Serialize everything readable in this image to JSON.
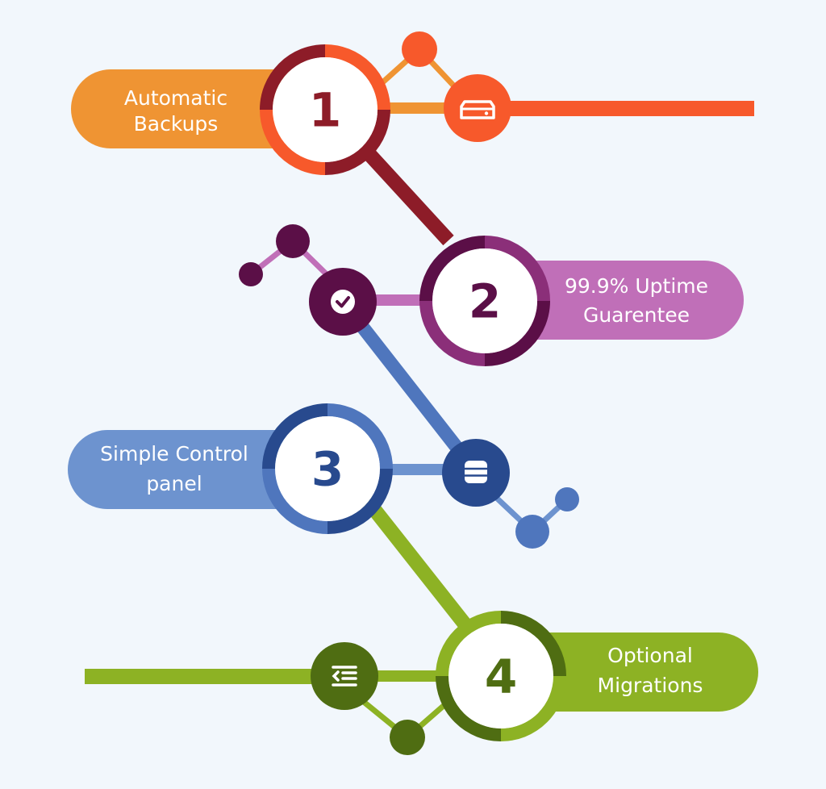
{
  "colors": {
    "background": "#f2f7fc",
    "orange_light": "#ef9433",
    "orange_red": "#f7592b",
    "maroon": "#8d1c28",
    "purple_light": "#c06fb8",
    "purple_dark": "#5b0f47",
    "purple_mid": "#8b2f79",
    "blue_light": "#6d93cf",
    "blue_mid": "#4f76bd",
    "blue_dark": "#284a8e",
    "green_light": "#8db224",
    "green_dark": "#4f6d12"
  },
  "steps": [
    {
      "number": "1",
      "line1": "Automatic",
      "line2": "Backups",
      "icon": "server-icon"
    },
    {
      "number": "2",
      "line1": "99.9% Uptime",
      "line2": "Guarentee",
      "icon": "check-icon"
    },
    {
      "number": "3",
      "line1": "Simple Control",
      "line2": "panel",
      "icon": "database-icon"
    },
    {
      "number": "4",
      "line1": "Optional",
      "line2": "Migrations",
      "icon": "indent-list-icon"
    }
  ]
}
